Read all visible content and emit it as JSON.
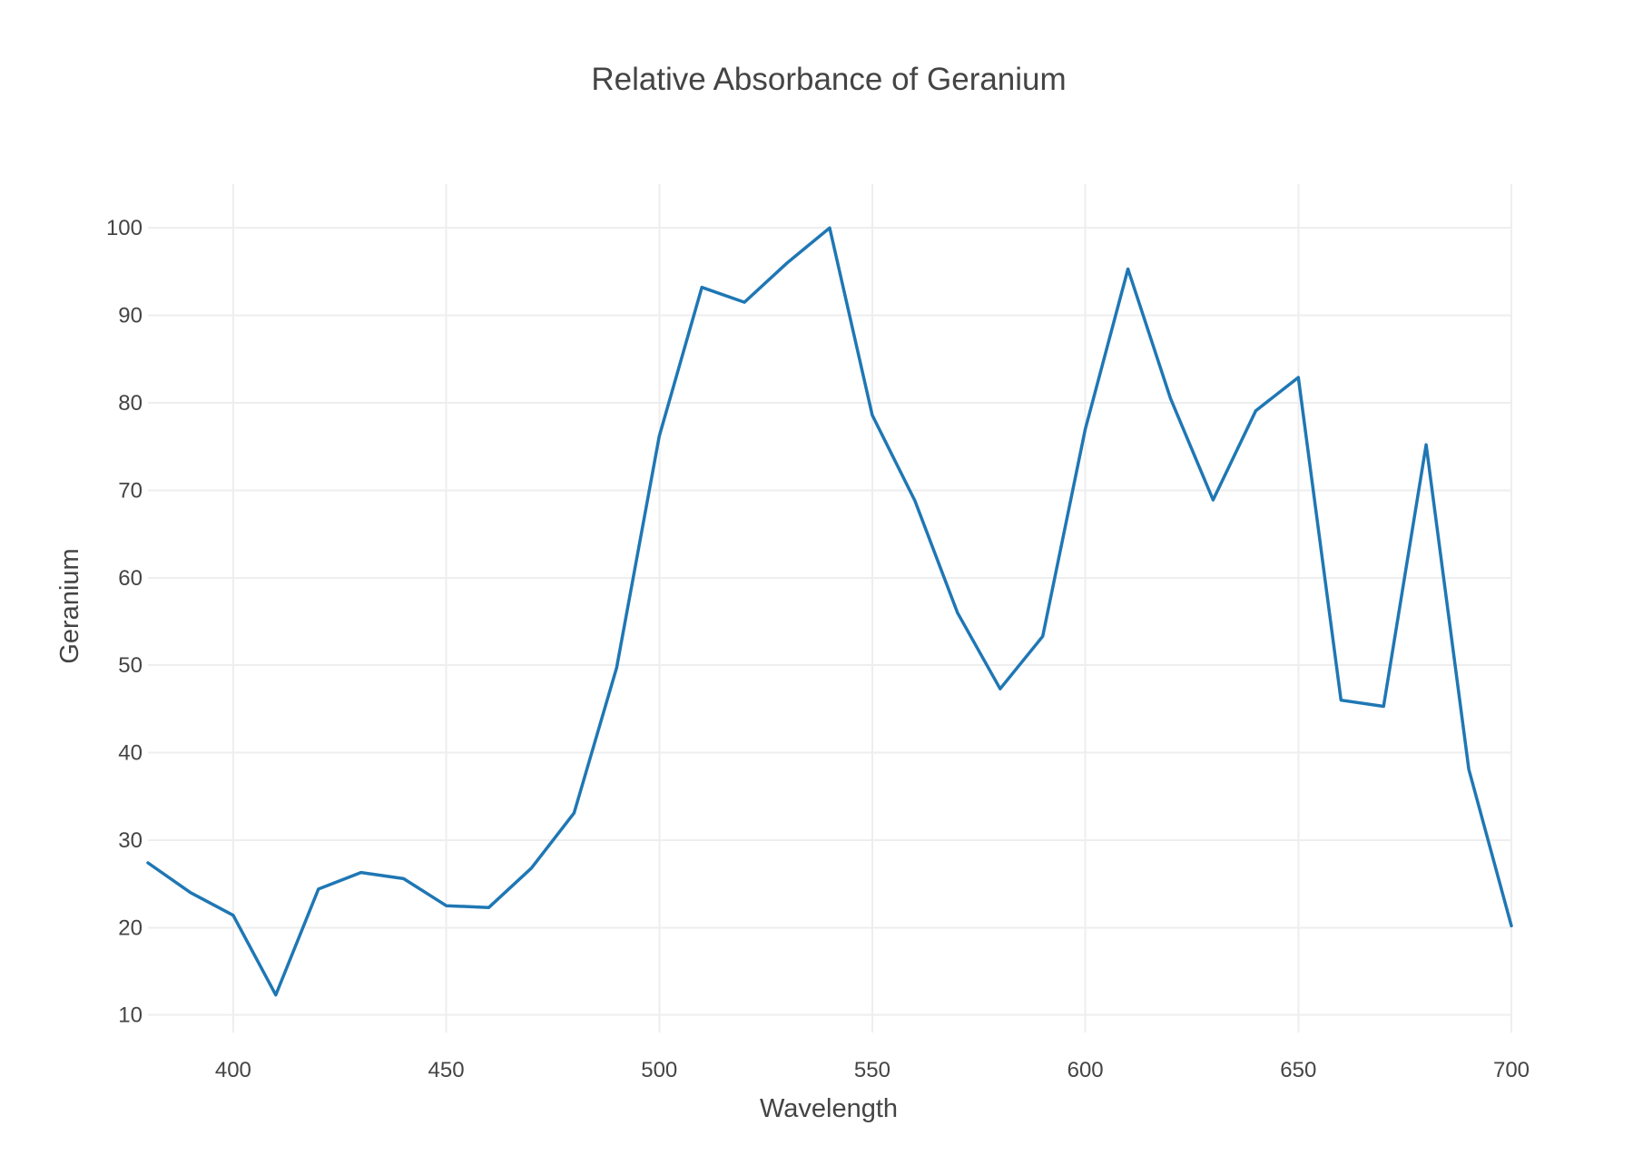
{
  "chart_data": {
    "type": "line",
    "title": "Relative Absorbance of Geranium",
    "xlabel": "Wavelength",
    "ylabel": "Geranium",
    "xlim": [
      380,
      700
    ],
    "ylim": [
      8,
      105
    ],
    "x_ticks": [
      400,
      450,
      500,
      550,
      600,
      650,
      700
    ],
    "y_ticks": [
      10,
      20,
      30,
      40,
      50,
      60,
      70,
      80,
      90,
      100
    ],
    "grid": true,
    "legend": "none",
    "series": [
      {
        "color": "#1f77b4",
        "x": [
          380,
          390,
          400,
          410,
          420,
          430,
          440,
          450,
          460,
          470,
          480,
          490,
          500,
          510,
          520,
          530,
          540,
          550,
          560,
          570,
          580,
          590,
          600,
          610,
          620,
          630,
          640,
          650,
          660,
          670,
          680,
          690,
          700
        ],
        "y": [
          27.4,
          24.0,
          21.4,
          12.3,
          24.4,
          26.3,
          25.6,
          22.5,
          22.3,
          26.8,
          33.1,
          49.7,
          76.2,
          93.2,
          91.5,
          96.0,
          100.0,
          78.6,
          68.8,
          56.0,
          47.3,
          53.3,
          77.0,
          95.3,
          80.5,
          68.9,
          79.1,
          82.9,
          46.0,
          45.3,
          75.2,
          38.1,
          20.2
        ]
      }
    ]
  }
}
